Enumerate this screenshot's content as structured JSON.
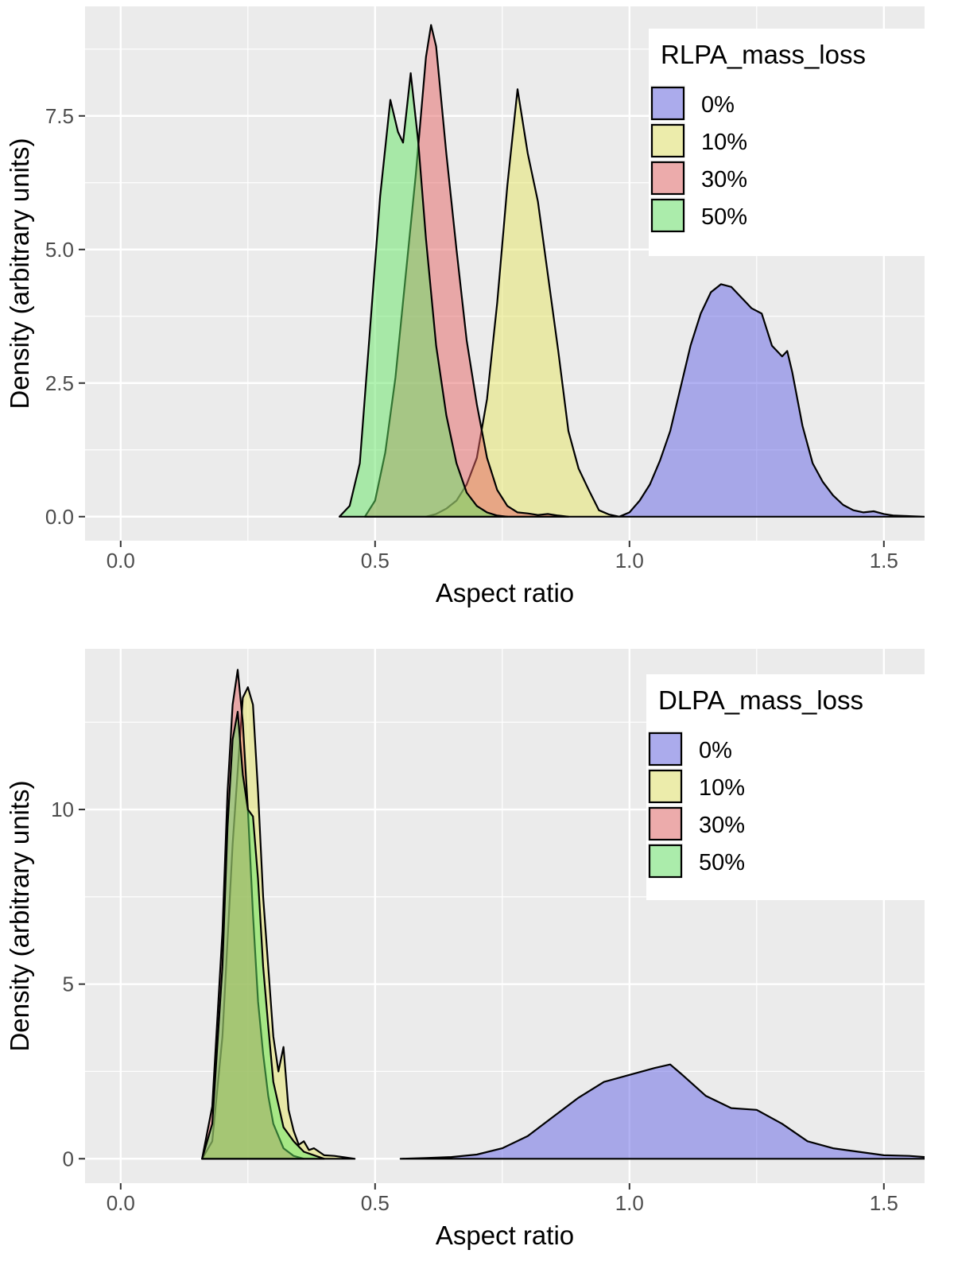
{
  "chart_data": [
    {
      "type": "area",
      "subtype": "density",
      "title": "",
      "xlabel": "Aspect ratio",
      "ylabel": "Density (arbitrary units)",
      "xlim": [
        -0.07,
        1.58
      ],
      "ylim": [
        -0.45,
        9.55
      ],
      "xticks": [
        0.0,
        0.5,
        1.0,
        1.5
      ],
      "xtick_labels": [
        "0.0",
        "0.5",
        "1.0",
        "1.5"
      ],
      "yticks": [
        0.0,
        2.5,
        5.0,
        7.5
      ],
      "ytick_labels": [
        "0.0",
        "2.5",
        "5.0",
        "7.5"
      ],
      "grid": true,
      "legend": {
        "title": "RLPA_mass_loss",
        "position": "top-right"
      },
      "series": [
        {
          "name": "0%",
          "color": "#6464E6",
          "x": [
            0.98,
            1.0,
            1.02,
            1.04,
            1.06,
            1.08,
            1.1,
            1.12,
            1.14,
            1.16,
            1.18,
            1.2,
            1.22,
            1.24,
            1.26,
            1.27,
            1.28,
            1.3,
            1.31,
            1.32,
            1.34,
            1.36,
            1.38,
            1.4,
            1.42,
            1.44,
            1.46,
            1.48,
            1.5,
            1.52,
            1.58
          ],
          "y": [
            0,
            0.08,
            0.3,
            0.6,
            1.05,
            1.6,
            2.4,
            3.2,
            3.8,
            4.2,
            4.35,
            4.3,
            4.1,
            3.9,
            3.8,
            3.5,
            3.2,
            3.0,
            3.1,
            2.7,
            1.7,
            1.0,
            0.65,
            0.4,
            0.22,
            0.12,
            0.08,
            0.1,
            0.05,
            0.02,
            0
          ]
        },
        {
          "name": "10%",
          "color": "#E6E664",
          "x": [
            0.6,
            0.62,
            0.64,
            0.66,
            0.68,
            0.7,
            0.72,
            0.74,
            0.76,
            0.78,
            0.8,
            0.82,
            0.84,
            0.86,
            0.88,
            0.9,
            0.92,
            0.94,
            0.96,
            0.98
          ],
          "y": [
            0,
            0.05,
            0.15,
            0.3,
            0.6,
            1.1,
            2.2,
            4.0,
            6.2,
            8.0,
            6.8,
            5.9,
            4.5,
            3.1,
            1.6,
            0.9,
            0.5,
            0.12,
            0.04,
            0
          ]
        },
        {
          "name": "30%",
          "color": "#E66464",
          "x": [
            0.48,
            0.5,
            0.52,
            0.54,
            0.56,
            0.58,
            0.6,
            0.61,
            0.62,
            0.64,
            0.66,
            0.68,
            0.7,
            0.72,
            0.74,
            0.76,
            0.78,
            0.8,
            0.82,
            0.84,
            0.86,
            0.88
          ],
          "y": [
            0,
            0.3,
            1.2,
            2.6,
            4.5,
            6.4,
            8.6,
            9.2,
            8.8,
            6.8,
            5.0,
            3.3,
            2.1,
            1.1,
            0.5,
            0.2,
            0.08,
            0.06,
            0.03,
            0.05,
            0.02,
            0
          ]
        },
        {
          "name": "50%",
          "color": "#64E664",
          "x": [
            0.43,
            0.45,
            0.47,
            0.49,
            0.51,
            0.53,
            0.545,
            0.555,
            0.57,
            0.585,
            0.6,
            0.62,
            0.64,
            0.66,
            0.68,
            0.7,
            0.72,
            0.74,
            0.76
          ],
          "y": [
            0,
            0.2,
            1.0,
            3.5,
            6.0,
            7.8,
            7.2,
            7.0,
            8.3,
            7.0,
            5.2,
            3.2,
            1.9,
            1.0,
            0.45,
            0.2,
            0.08,
            0.02,
            0
          ]
        }
      ]
    },
    {
      "type": "area",
      "subtype": "density",
      "title": "",
      "xlabel": "Aspect ratio",
      "ylabel": "Density (arbitrary units)",
      "xlim": [
        -0.07,
        1.58
      ],
      "ylim": [
        -0.7,
        14.6
      ],
      "xticks": [
        0.0,
        0.5,
        1.0,
        1.5
      ],
      "xtick_labels": [
        "0.0",
        "0.5",
        "1.0",
        "1.5"
      ],
      "yticks": [
        0,
        5,
        10
      ],
      "ytick_labels": [
        "0",
        "5",
        "10"
      ],
      "grid": true,
      "legend": {
        "title": "DLPA_mass_loss",
        "position": "top-right"
      },
      "series": [
        {
          "name": "0%",
          "color": "#6464E6",
          "x": [
            0.55,
            0.6,
            0.65,
            0.7,
            0.75,
            0.8,
            0.85,
            0.9,
            0.95,
            1.0,
            1.05,
            1.08,
            1.1,
            1.15,
            1.2,
            1.25,
            1.3,
            1.35,
            1.4,
            1.45,
            1.5,
            1.55,
            1.58
          ],
          "y": [
            0,
            0.02,
            0.05,
            0.12,
            0.3,
            0.65,
            1.2,
            1.75,
            2.2,
            2.4,
            2.6,
            2.7,
            2.45,
            1.8,
            1.45,
            1.4,
            1.0,
            0.5,
            0.3,
            0.2,
            0.1,
            0.08,
            0.05
          ]
        },
        {
          "name": "10%",
          "color": "#E6E664",
          "x": [
            0.16,
            0.18,
            0.2,
            0.22,
            0.24,
            0.25,
            0.26,
            0.27,
            0.28,
            0.29,
            0.3,
            0.31,
            0.32,
            0.33,
            0.34,
            0.35,
            0.36,
            0.37,
            0.38,
            0.4,
            0.42,
            0.44,
            0.46
          ],
          "y": [
            0,
            0.5,
            3.5,
            9.0,
            13.2,
            13.5,
            13.0,
            10.5,
            7.5,
            5.5,
            3.5,
            2.5,
            3.2,
            1.4,
            0.8,
            0.4,
            0.5,
            0.25,
            0.3,
            0.1,
            0.08,
            0.04,
            0
          ]
        },
        {
          "name": "30%",
          "color": "#E66464",
          "x": [
            0.16,
            0.18,
            0.2,
            0.21,
            0.22,
            0.23,
            0.24,
            0.25,
            0.26,
            0.27,
            0.28,
            0.29,
            0.3,
            0.32,
            0.34,
            0.36
          ],
          "y": [
            0,
            1.5,
            6.5,
            10.5,
            13.0,
            14.0,
            12.5,
            10.0,
            7.0,
            4.5,
            3.0,
            1.8,
            1.0,
            0.3,
            0.08,
            0
          ]
        },
        {
          "name": "50%",
          "color": "#64E664",
          "x": [
            0.16,
            0.18,
            0.2,
            0.21,
            0.22,
            0.23,
            0.24,
            0.25,
            0.26,
            0.27,
            0.28,
            0.29,
            0.3,
            0.32,
            0.34,
            0.36,
            0.38,
            0.4
          ],
          "y": [
            0,
            1.0,
            5.5,
            9.5,
            12.0,
            12.8,
            11.0,
            10.0,
            9.8,
            8.0,
            5.5,
            3.8,
            2.2,
            0.9,
            0.5,
            0.2,
            0.1,
            0
          ]
        }
      ]
    }
  ]
}
